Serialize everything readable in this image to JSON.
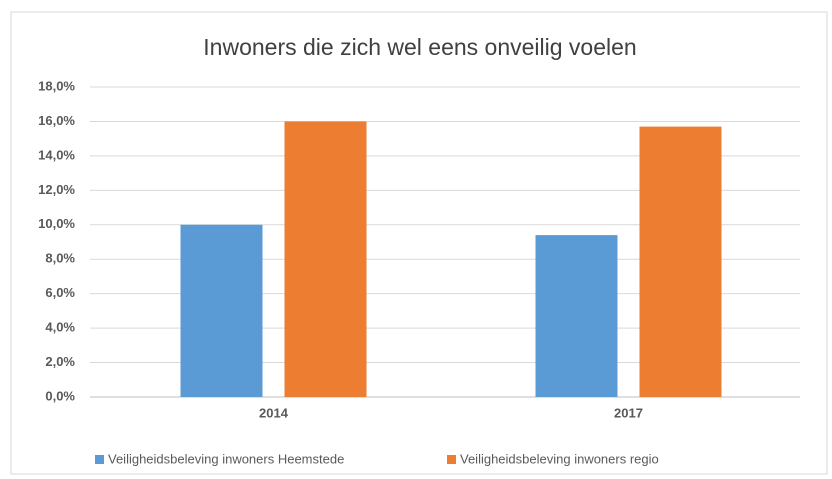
{
  "chart_data": {
    "type": "bar",
    "title": "Inwoners die zich wel eens onveilig voelen",
    "categories": [
      "2014",
      "2017"
    ],
    "series": [
      {
        "name": "Veiligheidsbeleving inwoners Heemstede",
        "color": "#5b9bd5",
        "values": [
          10.0,
          9.4
        ]
      },
      {
        "name": "Veiligheidsbeleving inwoners regio",
        "color": "#ed7d31",
        "values": [
          16.0,
          15.7
        ]
      }
    ],
    "ylim": [
      0,
      18
    ],
    "yticks": [
      {
        "value": 0,
        "label": "0,0%"
      },
      {
        "value": 2,
        "label": "2,0%"
      },
      {
        "value": 4,
        "label": "4,0%"
      },
      {
        "value": 6,
        "label": "6,0%"
      },
      {
        "value": 8,
        "label": "8,0%"
      },
      {
        "value": 10,
        "label": "10,0%"
      },
      {
        "value": 12,
        "label": "12,0%"
      },
      {
        "value": 14,
        "label": "14,0%"
      },
      {
        "value": 16,
        "label": "16,0%"
      },
      {
        "value": 18,
        "label": "18,0%"
      }
    ],
    "grid": true,
    "legend": "bottom"
  }
}
